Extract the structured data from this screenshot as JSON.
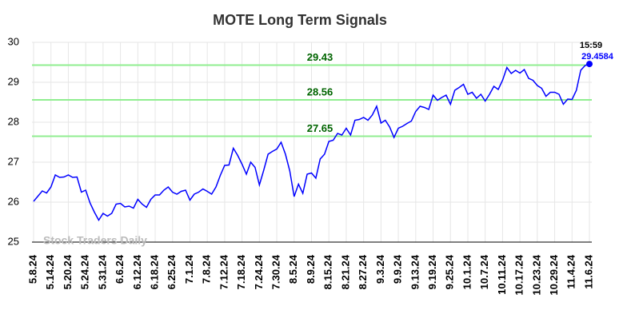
{
  "chart_data": {
    "type": "line",
    "title": "MOTE Long Term Signals",
    "categories": [
      "5.8.24",
      null,
      null,
      null,
      "5.14.24",
      null,
      null,
      null,
      "5.20.24",
      null,
      null,
      null,
      "5.24.24",
      null,
      null,
      null,
      "5.31.24",
      null,
      null,
      null,
      "6.6.24",
      null,
      null,
      null,
      "6.12.24",
      null,
      null,
      null,
      "6.18.24",
      null,
      null,
      null,
      "6.25.24",
      null,
      null,
      null,
      "7.1.24",
      null,
      null,
      null,
      "7.8.24",
      null,
      null,
      null,
      "7.12.24",
      null,
      null,
      null,
      "7.18.24",
      null,
      null,
      null,
      "7.24.24",
      null,
      null,
      null,
      "7.30.24",
      null,
      null,
      null,
      "8.5.24",
      null,
      null,
      null,
      "8.9.24",
      null,
      null,
      null,
      "8.15.24",
      null,
      null,
      null,
      "8.21.24",
      null,
      null,
      null,
      "8.27.24",
      null,
      null,
      null,
      "9.3.24",
      null,
      null,
      null,
      "9.9.24",
      null,
      null,
      null,
      "9.13.24",
      null,
      null,
      null,
      "9.19.24",
      null,
      null,
      null,
      "9.25.24",
      null,
      null,
      null,
      "10.1.24",
      null,
      null,
      null,
      "10.7.24",
      null,
      null,
      null,
      "10.11.24",
      null,
      null,
      null,
      "10.17.24",
      null,
      null,
      null,
      "10.23.24",
      null,
      null,
      null,
      "10.29.24",
      null,
      null,
      null,
      "11.4.24",
      null,
      null,
      null,
      "11.6.24"
    ],
    "series": [
      {
        "color": "#0000ff",
        "values": [
          26.02,
          26.15,
          26.28,
          26.23,
          26.38,
          26.68,
          26.62,
          26.63,
          26.68,
          26.62,
          26.63,
          26.25,
          26.3,
          25.98,
          25.75,
          25.55,
          25.72,
          25.65,
          25.72,
          25.95,
          25.97,
          25.88,
          25.9,
          25.85,
          26.07,
          25.95,
          25.87,
          26.07,
          26.18,
          26.18,
          26.3,
          26.38,
          26.25,
          26.2,
          26.27,
          26.3,
          26.05,
          26.2,
          26.25,
          26.33,
          26.27,
          26.2,
          26.38,
          26.67,
          26.92,
          26.93,
          27.35,
          27.17,
          26.95,
          26.7,
          27.0,
          26.87,
          26.43,
          26.8,
          27.2,
          27.27,
          27.33,
          27.5,
          27.2,
          26.78,
          26.14,
          26.45,
          26.22,
          26.7,
          26.73,
          26.6,
          27.08,
          27.2,
          27.52,
          27.55,
          27.72,
          27.68,
          27.85,
          27.68,
          28.05,
          28.07,
          28.12,
          28.05,
          28.18,
          28.4,
          27.98,
          28.05,
          27.88,
          27.62,
          27.85,
          27.9,
          27.97,
          28.03,
          28.27,
          28.4,
          28.37,
          28.32,
          28.68,
          28.55,
          28.62,
          28.68,
          28.45,
          28.8,
          28.87,
          28.95,
          28.7,
          28.75,
          28.6,
          28.7,
          28.53,
          28.7,
          28.9,
          28.82,
          29.05,
          29.37,
          29.22,
          29.3,
          29.23,
          29.32,
          29.1,
          29.05,
          28.92,
          28.85,
          28.65,
          28.75,
          28.75,
          28.7,
          28.45,
          28.58,
          28.57,
          28.8,
          29.3,
          29.42,
          29.4584
        ]
      }
    ],
    "hlines": [
      29.43,
      28.56,
      27.65
    ],
    "hline_color": "#90ee90",
    "hline_label_color": "#006400",
    "last_time": "15:59",
    "watermark": "Stock Traders Daily",
    "ylim": [
      25,
      30
    ],
    "yticks": [
      25,
      26,
      27,
      28,
      29,
      30
    ],
    "grid": true
  }
}
